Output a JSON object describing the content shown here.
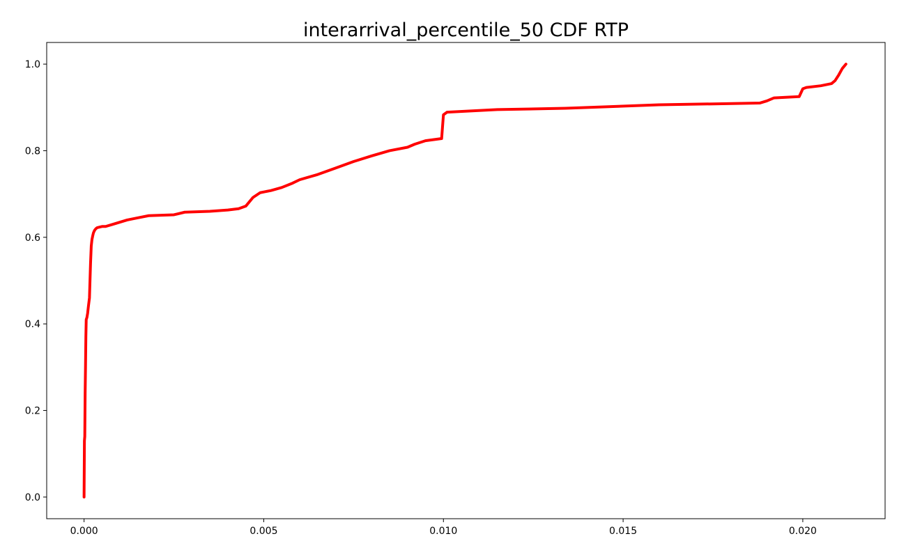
{
  "chart_data": {
    "type": "line",
    "title": "interarrival_percentile_50 CDF RTP",
    "xlabel": "",
    "ylabel": "",
    "xlim": [
      -0.00104,
      0.02229
    ],
    "ylim": [
      -0.05,
      1.05
    ],
    "grid": false,
    "x_ticks": [
      0.0,
      0.005,
      0.01,
      0.015,
      0.02
    ],
    "x_tick_labels": [
      "0.000",
      "0.005",
      "0.010",
      "0.015",
      "0.020"
    ],
    "y_ticks": [
      0.0,
      0.2,
      0.4,
      0.6,
      0.8,
      1.0
    ],
    "y_tick_labels": [
      "0.0",
      "0.2",
      "0.4",
      "0.6",
      "0.8",
      "1.0"
    ],
    "series": [
      {
        "color": "#ff0000",
        "x": [
          0.0,
          1e-05,
          2e-05,
          3e-05,
          4e-05,
          5e-05,
          6e-05,
          8e-05,
          0.0001,
          0.00012,
          0.00015,
          0.00018,
          0.0002,
          0.00022,
          0.00024,
          0.00026,
          0.00028,
          0.0003,
          0.00033,
          0.00036,
          0.0004,
          0.00045,
          0.0005,
          0.0006,
          0.0008,
          0.001,
          0.0012,
          0.0015,
          0.0018,
          0.0025,
          0.0028,
          0.0035,
          0.004,
          0.0043,
          0.0045,
          0.0047,
          0.0049,
          0.0052,
          0.0055,
          0.0058,
          0.006,
          0.0065,
          0.007,
          0.0075,
          0.008,
          0.0085,
          0.009,
          0.0092,
          0.0095,
          0.00995,
          0.01,
          0.0101,
          0.0115,
          0.0134,
          0.016,
          0.0188,
          0.019,
          0.0192,
          0.0199,
          0.02,
          0.0201,
          0.0205,
          0.0208,
          0.0209,
          0.021,
          0.0211,
          0.0212
        ],
        "y": [
          0.0,
          0.13,
          0.14,
          0.24,
          0.3,
          0.37,
          0.41,
          0.415,
          0.425,
          0.44,
          0.46,
          0.54,
          0.58,
          0.595,
          0.603,
          0.61,
          0.614,
          0.617,
          0.62,
          0.622,
          0.623,
          0.624,
          0.625,
          0.625,
          0.63,
          0.635,
          0.64,
          0.645,
          0.65,
          0.652,
          0.658,
          0.66,
          0.663,
          0.666,
          0.672,
          0.692,
          0.703,
          0.708,
          0.715,
          0.725,
          0.733,
          0.745,
          0.76,
          0.775,
          0.788,
          0.8,
          0.808,
          0.815,
          0.823,
          0.828,
          0.883,
          0.889,
          0.895,
          0.898,
          0.906,
          0.91,
          0.915,
          0.922,
          0.925,
          0.943,
          0.946,
          0.95,
          0.955,
          0.962,
          0.975,
          0.99,
          1.0
        ]
      }
    ]
  }
}
